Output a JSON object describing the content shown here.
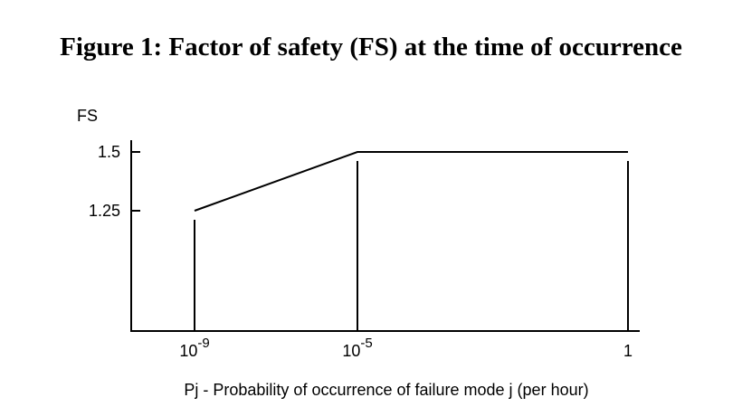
{
  "figure": {
    "title": "Figure 1: Factor of safety (FS) at the time of occurrence"
  },
  "chart_data": {
    "type": "line",
    "title": "Figure 1: Factor of safety (FS) at the time of occurrence",
    "ylabel": "FS",
    "xlabel": "Pj - Probability of occurrence of failure mode j (per hour)",
    "x_scale": "log",
    "x_ticks": [
      {
        "value": 1e-09,
        "base": "10",
        "exp": "-9"
      },
      {
        "value": 1e-05,
        "base": "10",
        "exp": "-5"
      },
      {
        "value": 1,
        "base": "1",
        "exp": ""
      }
    ],
    "y_ticks": [
      {
        "value": 1.5,
        "label": "1.5"
      },
      {
        "value": 1.25,
        "label": "1.25"
      }
    ],
    "series": [
      {
        "points": [
          {
            "x": 1e-09,
            "y": 1.25
          },
          {
            "x": 1e-05,
            "y": 1.5
          },
          {
            "x": 1,
            "y": 1.5
          }
        ]
      }
    ],
    "vertical_lines_at_x": [
      1e-09,
      1e-05,
      1
    ],
    "grid": false,
    "colors": {
      "line": "#000000",
      "axis": "#000000"
    }
  }
}
